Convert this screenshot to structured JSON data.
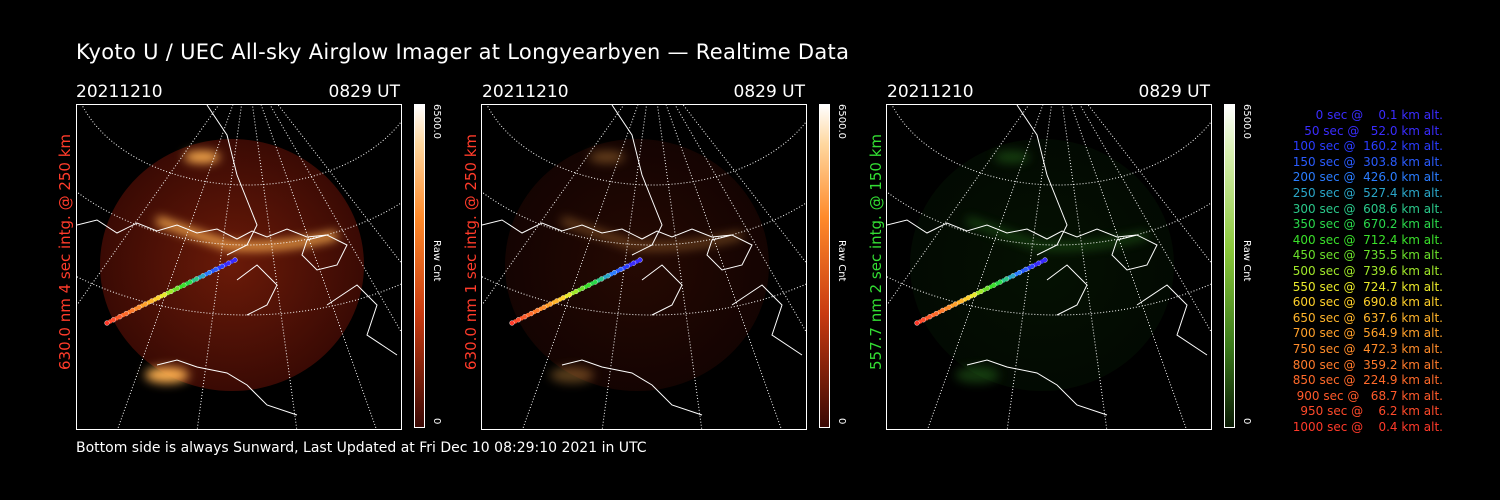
{
  "title": "Kyoto U / UEC All-sky Airglow Imager at Longyearbyen — Realtime Data",
  "footer": "Bottom side is always Sunward, Last Updated at Fri Dec 10 08:29:10 2021 in UTC",
  "panels": [
    {
      "date": "20211210",
      "time": "0829 UT",
      "label": "630.0 nm 4 sec intg. @ 250 km",
      "label_color": "#ff3b2a",
      "cbar_max": "6500.0",
      "cbar_min": "0",
      "cbar_unit": "Raw Cnt",
      "palette": "red",
      "intensity": 1.0
    },
    {
      "date": "20211210",
      "time": "0829 UT",
      "label": "630.0 nm 1 sec intg. @ 250 km",
      "label_color": "#ff3b2a",
      "cbar_max": "6500.0",
      "cbar_min": "0",
      "cbar_unit": "Raw Cnt",
      "palette": "red",
      "intensity": 0.35
    },
    {
      "date": "20211210",
      "time": "0829 UT",
      "label": "557.7 nm 2 sec intg. @ 150 km",
      "label_color": "#33dd33",
      "cbar_max": "6500.0",
      "cbar_min": "0",
      "cbar_unit": "Raw Cnt",
      "palette": "green",
      "intensity": 0.4
    }
  ],
  "legend": [
    {
      "text": "   0 sec @    0.1 km alt.",
      "color": "#3a2cff"
    },
    {
      "text": "  50 sec @   52.0 km alt.",
      "color": "#3a2cff"
    },
    {
      "text": " 100 sec @  160.2 km alt.",
      "color": "#2a3cff"
    },
    {
      "text": " 150 sec @  303.8 km alt.",
      "color": "#2a5cff"
    },
    {
      "text": " 200 sec @  426.0 km alt.",
      "color": "#2a7cff"
    },
    {
      "text": " 250 sec @  527.4 km alt.",
      "color": "#2aa6c8"
    },
    {
      "text": " 300 sec @  608.6 km alt.",
      "color": "#2ac88a"
    },
    {
      "text": " 350 sec @  670.2 km alt.",
      "color": "#2ad84a"
    },
    {
      "text": " 400 sec @  712.4 km alt.",
      "color": "#3ae02a"
    },
    {
      "text": " 450 sec @  735.5 km alt.",
      "color": "#6ae02a"
    },
    {
      "text": " 500 sec @  739.6 km alt.",
      "color": "#a0e82a"
    },
    {
      "text": " 550 sec @  724.7 km alt.",
      "color": "#e8e82a"
    },
    {
      "text": " 600 sec @  690.8 km alt.",
      "color": "#ffd02a"
    },
    {
      "text": " 650 sec @  637.6 km alt.",
      "color": "#ffb42a"
    },
    {
      "text": " 700 sec @  564.9 km alt.",
      "color": "#ffa02a"
    },
    {
      "text": " 750 sec @  472.3 km alt.",
      "color": "#ff8c2a"
    },
    {
      "text": " 800 sec @  359.2 km alt.",
      "color": "#ff7a2a"
    },
    {
      "text": " 850 sec @  224.9 km alt.",
      "color": "#ff6a2a"
    },
    {
      "text": " 900 sec @   68.7 km alt.",
      "color": "#ff5a2a"
    },
    {
      "text": " 950 sec @    6.2 km alt.",
      "color": "#ff4a2a"
    },
    {
      "text": "1000 sec @    0.4 km alt.",
      "color": "#ff3a2a"
    }
  ]
}
